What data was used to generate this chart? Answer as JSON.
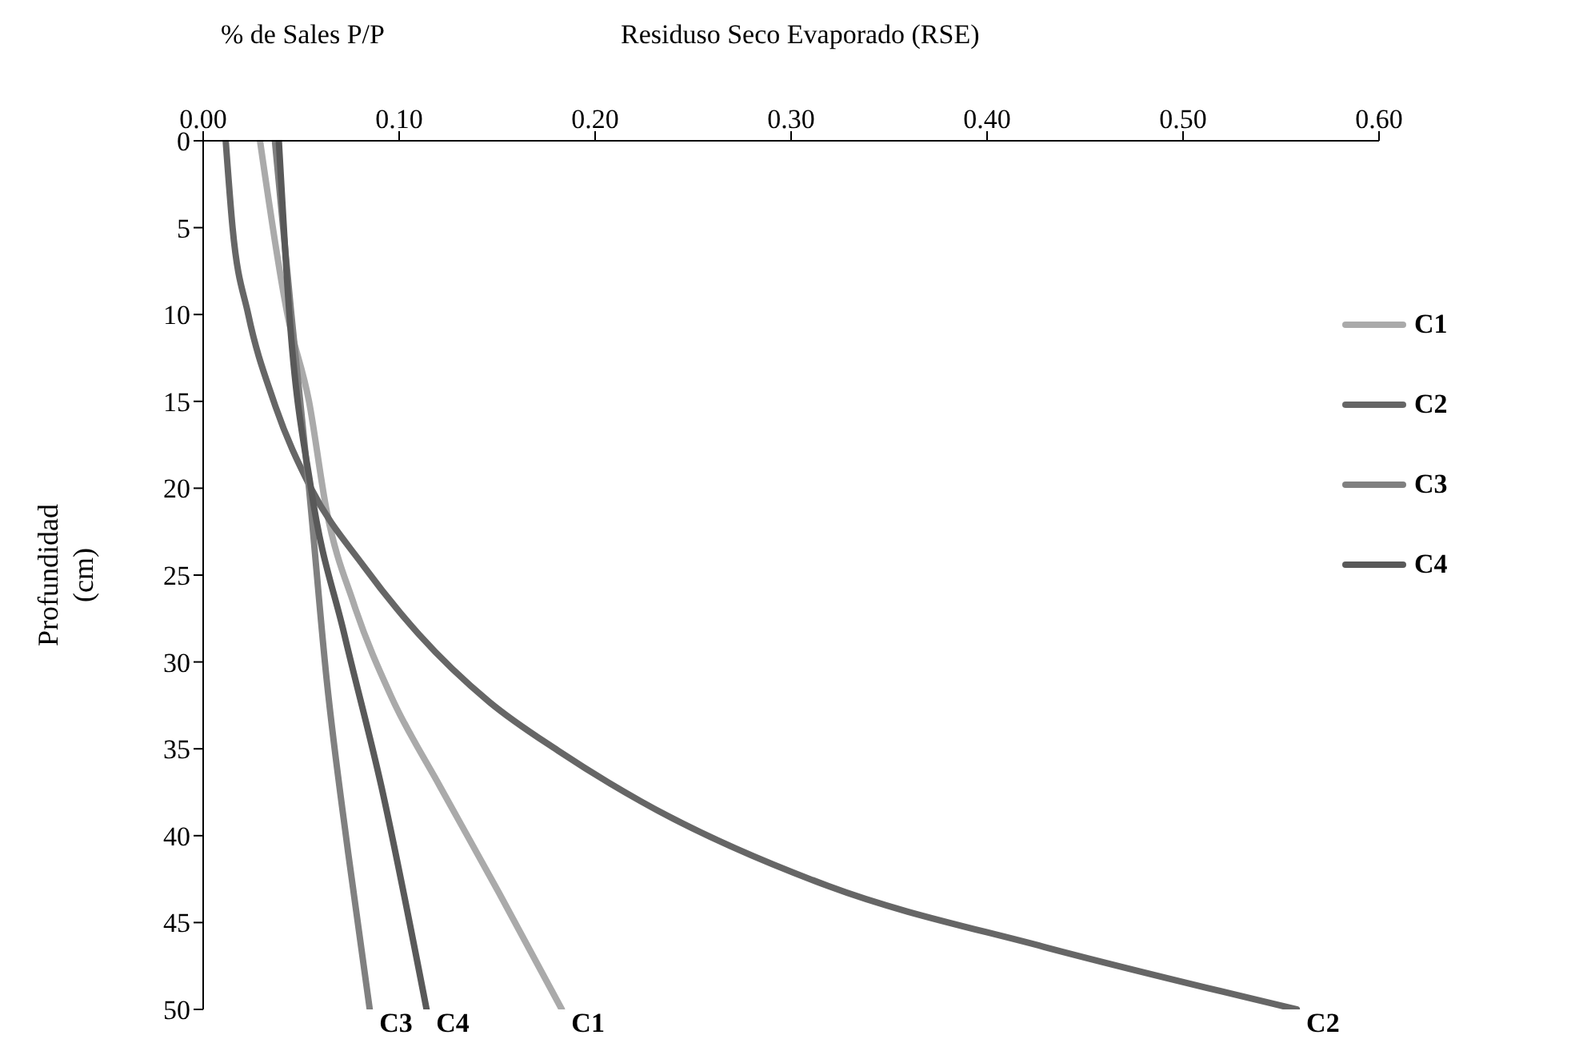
{
  "chart_data": {
    "type": "line",
    "xlabel": "% de Sales P/P",
    "ylabel": "Profundidad (cm)",
    "annotations": [
      "Residuso Seco Evaporado (RSE)",
      {
        "text": "C3",
        "x": 0.085,
        "y": 50
      },
      {
        "text": "C4",
        "x": 0.114,
        "y": 50
      },
      {
        "text": "C1",
        "x": 0.183,
        "y": 50
      },
      {
        "text": "C2",
        "x": 0.558,
        "y": 50
      }
    ],
    "xlim": [
      0,
      0.6
    ],
    "xticks": [
      {
        "value": 0,
        "label": "0.00"
      },
      {
        "value": 0.1,
        "label": "0.10"
      },
      {
        "value": 0.2,
        "label": "0.20"
      },
      {
        "value": 0.3,
        "label": "0.30"
      },
      {
        "value": 0.4,
        "label": "0.40"
      },
      {
        "value": 0.5,
        "label": "0.50"
      },
      {
        "value": 0.6,
        "label": "0.60"
      }
    ],
    "ylim": [
      50,
      0
    ],
    "yticks": [
      0,
      5,
      10,
      15,
      20,
      25,
      30,
      35,
      40,
      45,
      50
    ],
    "legend": "right",
    "marker": "none",
    "series": [
      {
        "name": "C1",
        "color": "#aaaaaa",
        "x": [
          0.029,
          0.043,
          0.054,
          0.063,
          0.077,
          0.096,
          0.121,
          0.151,
          0.183
        ],
        "values": [
          0,
          10,
          15,
          21.3,
          26.7,
          32,
          37.2,
          43.3,
          50
        ]
      },
      {
        "name": "C2",
        "color": "#666666",
        "x": [
          0.0115,
          0.015,
          0.023,
          0.036,
          0.055,
          0.082,
          0.11,
          0.146,
          0.181,
          0.223,
          0.319,
          0.429,
          0.558
        ],
        "values": [
          0,
          5,
          10,
          15,
          20,
          24.5,
          28.4,
          32.3,
          35.1,
          38,
          42.9,
          46.4,
          50
        ]
      },
      {
        "name": "C3",
        "color": "#808080",
        "x": [
          0.0366,
          0.045,
          0.054,
          0.063,
          0.074,
          0.085
        ],
        "values": [
          0,
          10,
          20,
          31,
          41,
          50
        ]
      },
      {
        "name": "C4",
        "color": "#595959",
        "x": [
          0.0386,
          0.044,
          0.055,
          0.072,
          0.091,
          0.114
        ],
        "values": [
          0,
          10,
          20,
          28.4,
          37.2,
          50
        ]
      }
    ]
  }
}
